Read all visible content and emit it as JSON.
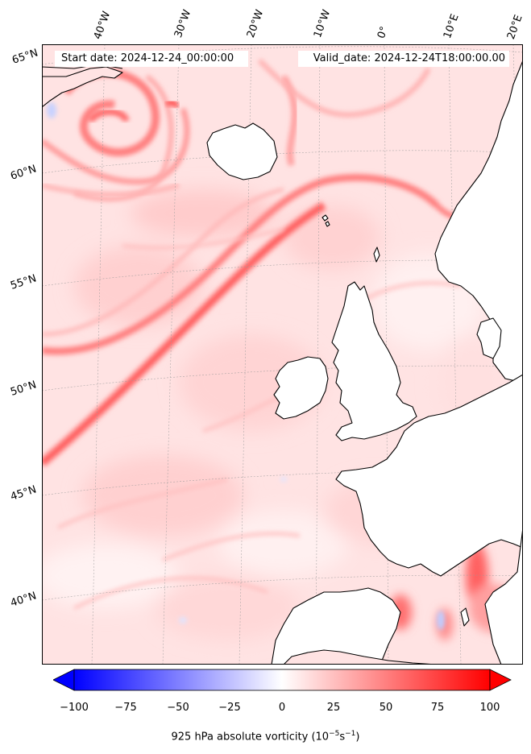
{
  "header": {
    "start_date": "Start date: 2024-12-24_00:00:00",
    "valid_date": "Valid_date: 2024-12-24T18:00:00.00"
  },
  "longitude_labels": [
    "40°W",
    "30°W",
    "20°W",
    "10°W",
    "0°",
    "10°E",
    "20°E"
  ],
  "latitude_labels": [
    "65°N",
    "60°N",
    "55°N",
    "50°N",
    "45°N",
    "40°N"
  ],
  "colorbar": {
    "ticks": [
      "−100",
      "−75",
      "−50",
      "−25",
      "0",
      "25",
      "50",
      "75",
      "100"
    ],
    "label": "925 hPa absolute vorticity (10",
    "unit_sup1": "−5",
    "unit_mid": "s",
    "unit_sup2": "−1",
    "label_end": ")",
    "range": [
      -100,
      100
    ],
    "colormap": "bwr",
    "extend": "both"
  },
  "colors": {
    "land_white": "#ffffff",
    "background_pink": "#ffe6e6",
    "max_red": "#ff0000",
    "min_blue": "#0000ff",
    "coast": "#000000"
  }
}
